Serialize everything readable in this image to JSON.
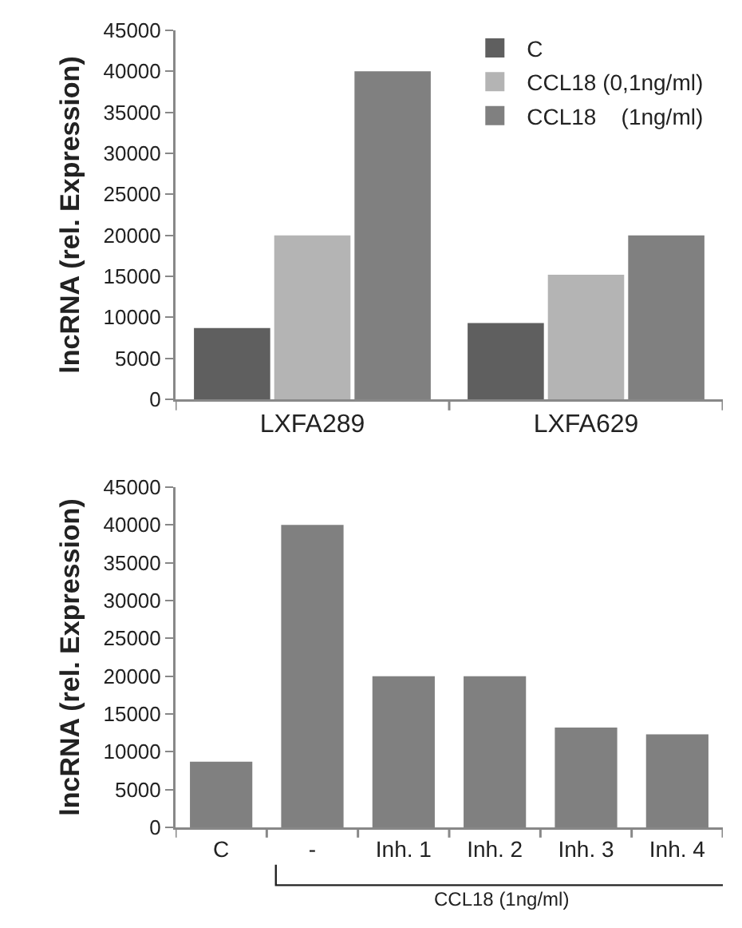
{
  "chart_data": [
    {
      "type": "bar",
      "ylabel": "lncRNA (rel. Expression)",
      "categories": [
        "LXFA289",
        "LXFA629"
      ],
      "series": [
        {
          "name": "C",
          "color": "#5f5f5f",
          "values": [
            8700,
            9300
          ]
        },
        {
          "name": "CCL18 (0,1ng/ml)",
          "color": "#b4b4b4",
          "values": [
            20000,
            15200
          ]
        },
        {
          "name": "CCL18    (1ng/ml)",
          "color": "#808080",
          "values": [
            40000,
            20000
          ]
        }
      ],
      "ylim": [
        0,
        45000
      ],
      "yticks": [
        0,
        5000,
        10000,
        15000,
        20000,
        25000,
        30000,
        35000,
        40000,
        45000
      ],
      "grid": false,
      "legend": "top right"
    },
    {
      "type": "bar",
      "ylabel": "lncRNA (rel. Expression)",
      "categories": [
        "C",
        "-",
        "Inh. 1",
        "Inh. 2",
        "Inh. 3",
        "Inh. 4"
      ],
      "series": [
        {
          "color": "#808080",
          "values": [
            8700,
            40000,
            20000,
            20000,
            13200,
            12300
          ]
        }
      ],
      "ylim": [
        0,
        45000
      ],
      "yticks": [
        0,
        5000,
        10000,
        15000,
        20000,
        25000,
        30000,
        35000,
        40000,
        45000
      ],
      "grid": false,
      "annotations": [
        "CCL18 (1ng/ml)"
      ]
    }
  ]
}
